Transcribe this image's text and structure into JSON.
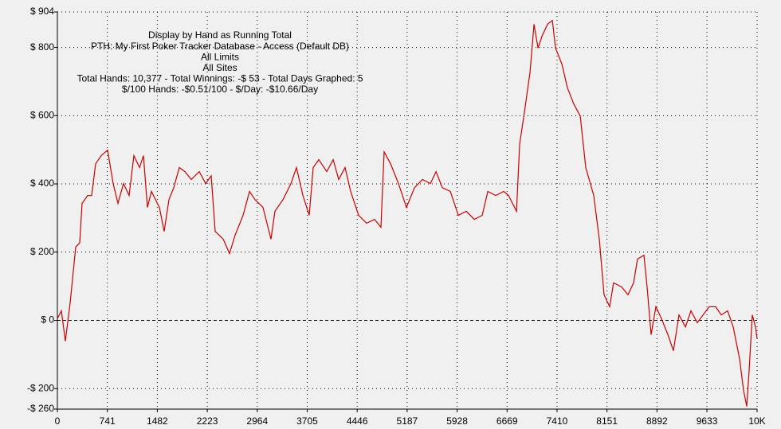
{
  "chart_data": {
    "type": "line",
    "annotations": [
      "Display by Hand as Running Total",
      "PTH: My First Poker Tracker Database - Access (Default DB)",
      "All Limits",
      "All Sites",
      "Total Hands: 10,377 - Total Winnings: -$ 53 - Total Days Graphed: 5",
      "$/100 Hands: -$0.51/100 - $/Day: -$10.66/Day"
    ],
    "xlim": [
      0,
      10377
    ],
    "ylim": [
      -260,
      904
    ],
    "xticks": [
      0,
      741,
      1482,
      2223,
      2964,
      3705,
      4446,
      5187,
      5928,
      6669,
      7410,
      8151,
      8892,
      9633,
      {
        "value": 10377,
        "label": "10K"
      }
    ],
    "yticks": [
      {
        "value": -260,
        "label": "-$ 260"
      },
      {
        "value": -200,
        "label": "-$ 200"
      },
      {
        "value": 0,
        "label": "$ 0"
      },
      {
        "value": 200,
        "label": "$ 200"
      },
      {
        "value": 400,
        "label": "$ 400"
      },
      {
        "value": 600,
        "label": "$ 600"
      },
      {
        "value": 800,
        "label": "$ 800"
      },
      {
        "value": 904,
        "label": "$ 904"
      }
    ],
    "grid": true,
    "series": [
      {
        "color": "#cc0000",
        "x": [
          0,
          59,
          118,
          189,
          272,
          331,
          366,
          449,
          508,
          567,
          650,
          745,
          827,
          898,
          981,
          1064,
          1135,
          1218,
          1277,
          1336,
          1395,
          1513,
          1584,
          1655,
          1726,
          1808,
          1891,
          1986,
          2104,
          2199,
          2281,
          2340,
          2459,
          2553,
          2636,
          2754,
          2849,
          2931,
          3049,
          3168,
          3227,
          3346,
          3464,
          3546,
          3641,
          3735,
          3794,
          3877,
          3995,
          4090,
          4172,
          4267,
          4349,
          4468,
          4586,
          4704,
          4799,
          4846,
          4941,
          5059,
          5177,
          5296,
          5414,
          5532,
          5615,
          5710,
          5828,
          5946,
          6064,
          6183,
          6301,
          6383,
          6501,
          6620,
          6691,
          6809,
          6856,
          6927,
          7010,
          7069,
          7128,
          7187,
          7270,
          7341,
          7388,
          7482,
          7565,
          7659,
          7754,
          7836,
          7954,
          8037,
          8108,
          8190,
          8249,
          8368,
          8462,
          8545,
          8604,
          8699,
          8746,
          8805,
          8876,
          8959,
          9054,
          9136,
          9219,
          9314,
          9396,
          9491,
          9574,
          9668,
          9763,
          9845,
          9940,
          10023,
          10117,
          10176,
          10223,
          10259,
          10306,
          10353,
          10377
        ],
        "values": [
          5,
          28,
          -61,
          51,
          215,
          227,
          343,
          366,
          366,
          459,
          483,
          499,
          401,
          343,
          401,
          366,
          483,
          448,
          483,
          331,
          378,
          331,
          261,
          354,
          389,
          448,
          436,
          413,
          436,
          401,
          424,
          261,
          238,
          196,
          250,
          308,
          378,
          354,
          331,
          238,
          320,
          354,
          401,
          448,
          366,
          308,
          448,
          471,
          436,
          471,
          413,
          448,
          378,
          308,
          285,
          296,
          273,
          494,
          459,
          401,
          331,
          389,
          413,
          401,
          436,
          389,
          378,
          308,
          320,
          296,
          308,
          378,
          366,
          378,
          366,
          320,
          518,
          611,
          728,
          868,
          798,
          833,
          868,
          879,
          798,
          751,
          681,
          634,
          599,
          448,
          366,
          238,
          75,
          40,
          110,
          98,
          75,
          110,
          180,
          191,
          98,
          -42,
          40,
          5,
          -42,
          -89,
          16,
          -19,
          28,
          -7,
          16,
          40,
          40,
          16,
          28,
          -19,
          -112,
          -205,
          -252,
          -147,
          16,
          -19,
          -53
        ]
      }
    ]
  }
}
